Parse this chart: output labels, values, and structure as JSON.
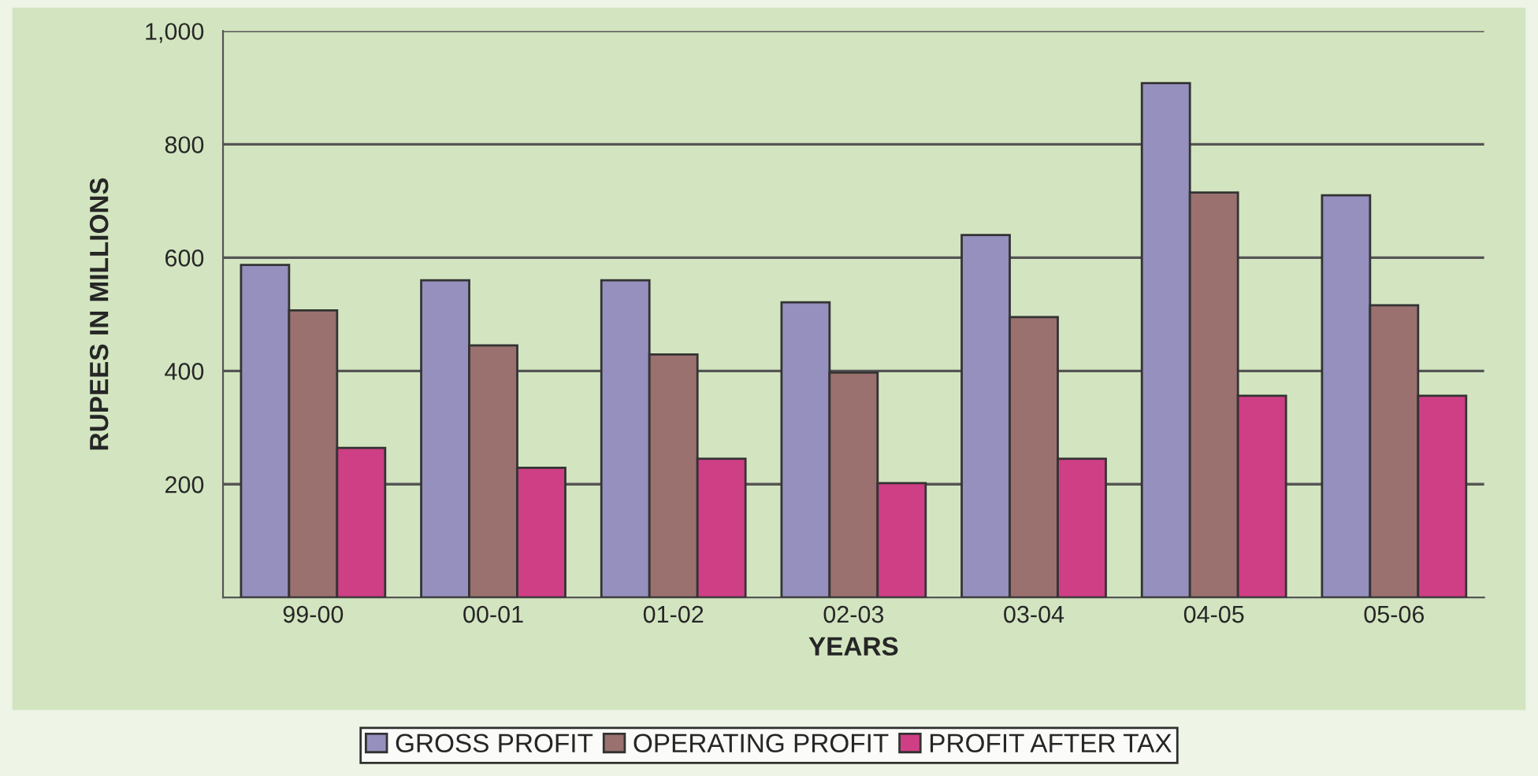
{
  "chart_data": {
    "type": "bar",
    "xlabel": "YEARS",
    "ylabel": "RUPEES IN MILLIONS",
    "categories": [
      "99-00",
      "00-01",
      "01-02",
      "02-03",
      "03-04",
      "04-05",
      "05-06"
    ],
    "series": [
      {
        "name": "GROSS PROFIT",
        "color": "#9590bd",
        "values": [
          587,
          560,
          560,
          521,
          640,
          908,
          710
        ]
      },
      {
        "name": "OPERATING PROFIT",
        "color": "#9a716f",
        "values": [
          507,
          445,
          429,
          397,
          495,
          715,
          516
        ]
      },
      {
        "name": "PROFIT AFTER TAX",
        "color": "#cf3f85",
        "values": [
          264,
          229,
          245,
          202,
          245,
          356,
          356
        ]
      }
    ],
    "ylim": [
      0,
      1000
    ],
    "yticks": [
      200,
      400,
      600,
      800,
      {
        "value": 1000,
        "label": "1,000"
      }
    ],
    "grid": "y",
    "legend": "bottom"
  }
}
